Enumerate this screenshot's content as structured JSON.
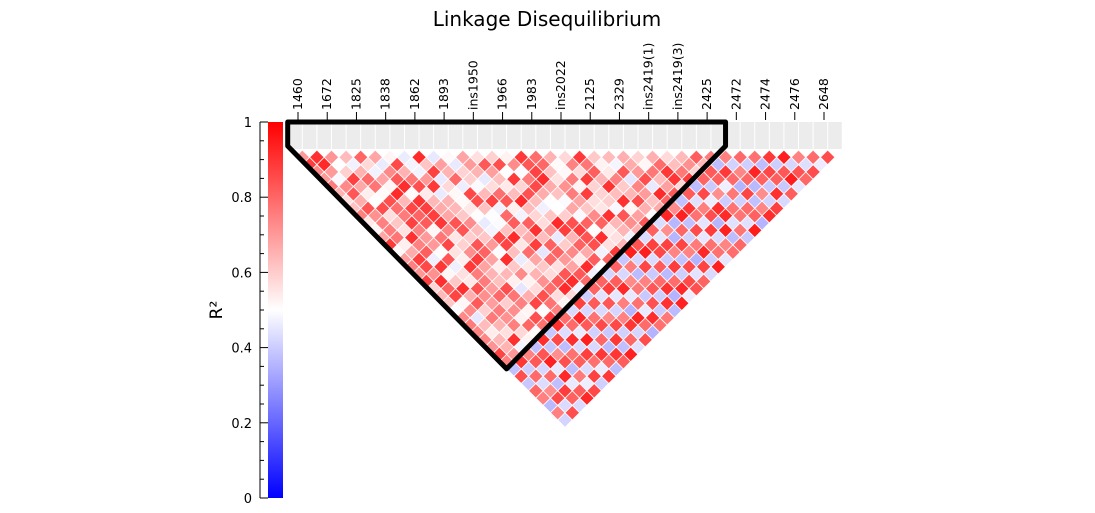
{
  "chart_data": {
    "type": "heatmap",
    "title": "Linkage Disequilibrium",
    "ylabel": "R²",
    "colorbar": {
      "range": [
        0,
        1
      ],
      "ticks": [
        "0",
        "0.2",
        "0.4",
        "0.6",
        "0.8",
        "1"
      ],
      "low_color": "#0000ff",
      "mid_color": "#ffffff",
      "high_color": "#ff0000"
    },
    "markers": [
      "1460",
      "1672",
      "1825",
      "1838",
      "1862",
      "1893",
      "ins1950",
      "1966",
      "1983",
      "ins2022",
      "2125",
      "2329",
      "ins2419(1)",
      "ins2419(3)",
      "2425",
      "2472",
      "2474",
      "2476",
      "2648"
    ],
    "block": {
      "first_marker": "1460",
      "last_marker": "2425",
      "first_index": 0,
      "last_index": 29
    },
    "block_r2_range": [
      0.45,
      0.92
    ],
    "outside_r2_range": [
      0.35,
      0.95
    ],
    "n_snps": 38
  }
}
